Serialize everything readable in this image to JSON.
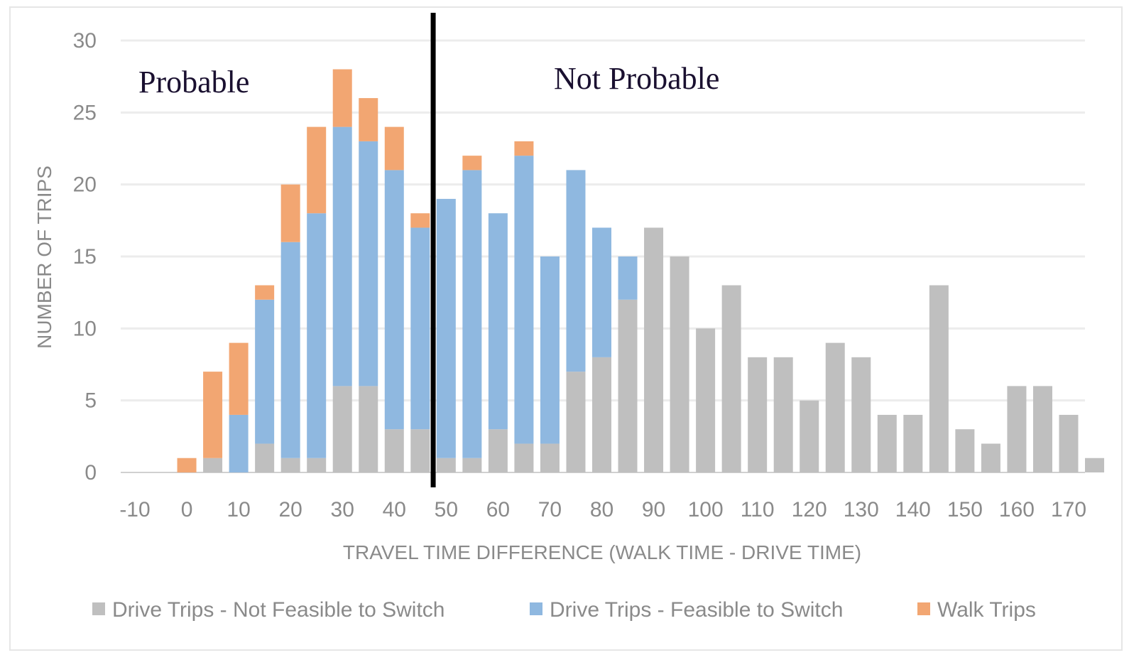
{
  "chart_data": {
    "type": "bar",
    "stacked": true,
    "title": "",
    "xlabel": "TRAVEL TIME DIFFERENCE (WALK TIME - DRIVE TIME)",
    "ylabel": "NUMBER OF TRIPS",
    "ylim": [
      0,
      30
    ],
    "yticks": [
      0,
      5,
      10,
      15,
      20,
      25,
      30
    ],
    "xticks": [
      "-10",
      "0",
      "10",
      "20",
      "30",
      "40",
      "50",
      "60",
      "70",
      "80",
      "90",
      "100",
      "110",
      "120",
      "130",
      "140",
      "150",
      "160",
      "170"
    ],
    "x": [
      0,
      5,
      10,
      15,
      20,
      25,
      30,
      35,
      40,
      45,
      50,
      55,
      60,
      65,
      70,
      75,
      80,
      85,
      90,
      95,
      100,
      105,
      110,
      115,
      120,
      125,
      130,
      135,
      140,
      145,
      150,
      155,
      160,
      165,
      170,
      175
    ],
    "series": [
      {
        "name": "Drive Trips - Not Feasible to Switch",
        "color": "#bfbfbf",
        "values": [
          0,
          1,
          0,
          2,
          1,
          1,
          6,
          6,
          3,
          3,
          1,
          1,
          3,
          2,
          2,
          7,
          8,
          12,
          17,
          15,
          10,
          13,
          8,
          8,
          5,
          9,
          8,
          4,
          4,
          13,
          3,
          2,
          6,
          6,
          4,
          1
        ]
      },
      {
        "name": "Drive Trips - Feasible to Switch",
        "color": "#8fb8e0",
        "values": [
          0,
          0,
          4,
          10,
          15,
          17,
          18,
          17,
          18,
          14,
          18,
          20,
          15,
          20,
          13,
          14,
          9,
          3,
          0,
          0,
          0,
          0,
          0,
          0,
          0,
          0,
          0,
          0,
          0,
          0,
          0,
          0,
          0,
          0,
          0,
          0
        ]
      },
      {
        "name": "Walk Trips",
        "color": "#f2a672",
        "values": [
          1,
          6,
          5,
          1,
          4,
          6,
          4,
          3,
          3,
          1,
          0,
          1,
          0,
          1,
          0,
          0,
          0,
          0,
          0,
          0,
          0,
          0,
          0,
          0,
          0,
          0,
          0,
          0,
          0,
          0,
          0,
          0,
          0,
          0,
          0,
          0
        ]
      }
    ],
    "divider_x": 47.5,
    "annotations": [
      {
        "text": "Probable",
        "position": "left of divider"
      },
      {
        "text": "Not Probable",
        "position": "right of divider"
      }
    ],
    "grid": true,
    "legend_position": "bottom"
  }
}
